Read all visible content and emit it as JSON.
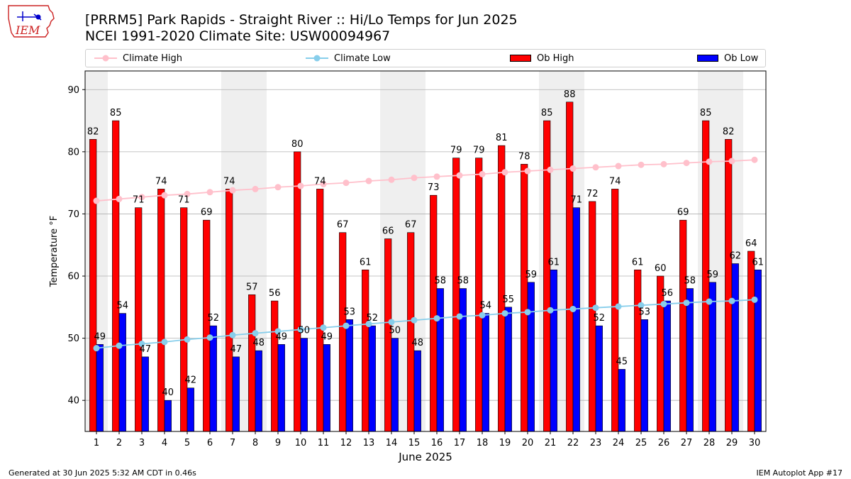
{
  "header": {
    "title_line1": "[PRRM5] Park Rapids - Straight River :: Hi/Lo Temps for Jun 2025",
    "title_line2": "NCEI 1991-2020 Climate Site: USW00094967",
    "logo_text": "IEM"
  },
  "footer": {
    "left": "Generated at 30 Jun 2025 5:32 AM CDT in 0.46s",
    "right": "IEM Autoplot App #17"
  },
  "colors": {
    "ob_high": "#ff0000",
    "ob_low": "#0000ff",
    "climate_high": "#ffc0cb",
    "climate_low": "#87ceeb",
    "weekend_band": "#efefef",
    "grid": "#b0b0b0"
  },
  "chart_data": {
    "type": "bar",
    "title": "[PRRM5] Park Rapids - Straight River :: Hi/Lo Temps for Jun 2025",
    "subtitle": "NCEI 1991-2020 Climate Site: USW00094967",
    "xlabel": "June 2025",
    "ylabel": "Temperature °F",
    "ylim": [
      35,
      93
    ],
    "yticks": [
      40,
      50,
      60,
      70,
      80,
      90
    ],
    "grid": true,
    "legend_position": "top",
    "categories": [
      "1",
      "2",
      "3",
      "4",
      "5",
      "6",
      "7",
      "8",
      "9",
      "10",
      "11",
      "12",
      "13",
      "14",
      "15",
      "16",
      "17",
      "18",
      "19",
      "20",
      "21",
      "22",
      "23",
      "24",
      "25",
      "26",
      "27",
      "28",
      "29",
      "30"
    ],
    "weekend_days": [
      1,
      7,
      8,
      14,
      15,
      21,
      22,
      28,
      29
    ],
    "series": [
      {
        "name": "Ob High",
        "kind": "bar",
        "values": [
          82,
          85,
          71,
          74,
          71,
          69,
          74,
          57,
          56,
          80,
          74,
          67,
          61,
          66,
          67,
          73,
          79,
          79,
          81,
          78,
          85,
          88,
          72,
          74,
          61,
          60,
          69,
          85,
          82,
          64
        ],
        "labels": [
          "82",
          "85",
          "71",
          "74",
          "71",
          "69",
          "74",
          "57",
          "56",
          "80",
          "74",
          "67",
          "61",
          "66",
          "67",
          "73",
          "79",
          "79",
          "81",
          "78",
          "85",
          "88",
          "72",
          "74",
          "61",
          "60",
          "69",
          "85",
          "82",
          "64"
        ]
      },
      {
        "name": "Ob Low",
        "kind": "bar",
        "values": [
          49,
          54,
          47,
          40,
          42,
          52,
          47,
          48,
          49,
          50,
          49,
          53,
          52,
          50,
          48,
          58,
          58,
          54,
          55,
          59,
          61,
          71,
          52,
          45,
          53,
          56,
          58,
          59,
          62,
          61
        ],
        "labels": [
          "49",
          "54",
          "47",
          "40",
          "42",
          "52",
          "47",
          "48",
          "49",
          "50",
          "49",
          "53",
          "52",
          "50",
          "48",
          "58",
          "58",
          "54",
          "55",
          "59",
          "61",
          "71",
          "52",
          "45",
          "53",
          "56",
          "58",
          "59",
          "62",
          "61"
        ]
      },
      {
        "name": "Climate High",
        "kind": "line",
        "values": [
          72.1,
          72.4,
          72.7,
          73.0,
          73.2,
          73.5,
          73.8,
          74.0,
          74.3,
          74.5,
          74.8,
          75.0,
          75.3,
          75.5,
          75.8,
          76.0,
          76.2,
          76.4,
          76.7,
          76.9,
          77.1,
          77.3,
          77.5,
          77.7,
          77.9,
          78.0,
          78.2,
          78.4,
          78.5,
          78.7
        ]
      },
      {
        "name": "Climate Low",
        "kind": "line",
        "values": [
          48.4,
          48.8,
          49.1,
          49.4,
          49.8,
          50.1,
          50.5,
          50.8,
          51.1,
          51.4,
          51.7,
          52.0,
          52.3,
          52.6,
          52.9,
          53.2,
          53.5,
          53.7,
          54.0,
          54.2,
          54.5,
          54.7,
          54.9,
          55.1,
          55.3,
          55.5,
          55.7,
          55.9,
          56.0,
          56.2
        ]
      }
    ]
  }
}
